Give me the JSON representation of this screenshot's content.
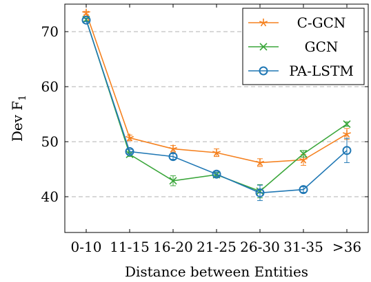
{
  "chart_data": {
    "type": "line",
    "title": "",
    "xlabel": "Distance between Entities",
    "ylabel": {
      "main": "Dev F",
      "subscript": "1"
    },
    "categories": [
      "0-10",
      "11-15",
      "16-20",
      "21-25",
      "26-30",
      "31-35",
      ">36"
    ],
    "ylim": [
      33.5,
      75
    ],
    "yticks": [
      40,
      50,
      60,
      70
    ],
    "grid": "horizontal-dashed",
    "legend_position": "top-right",
    "series": [
      {
        "name": "C-GCN",
        "color": "#f5811f",
        "marker": "star",
        "values": [
          73.4,
          50.7,
          48.7,
          48.0,
          46.2,
          46.7,
          51.4
        ],
        "error": [
          0.3,
          0.5,
          0.6,
          0.7,
          0.7,
          1.0,
          1.0
        ]
      },
      {
        "name": "GCN",
        "color": "#3aa63a",
        "marker": "x",
        "values": [
          72.2,
          47.7,
          42.9,
          44.0,
          41.0,
          47.8,
          53.2
        ],
        "error": [
          0.3,
          0.4,
          0.9,
          0.4,
          1.2,
          0.6,
          0.4
        ]
      },
      {
        "name": "PA-LSTM",
        "color": "#1f77b4",
        "marker": "circle",
        "values": [
          72.1,
          48.2,
          47.3,
          44.1,
          40.7,
          41.3,
          48.4
        ],
        "error": [
          0.3,
          0.4,
          0.5,
          0.4,
          1.4,
          0.5,
          2.2
        ]
      }
    ]
  }
}
